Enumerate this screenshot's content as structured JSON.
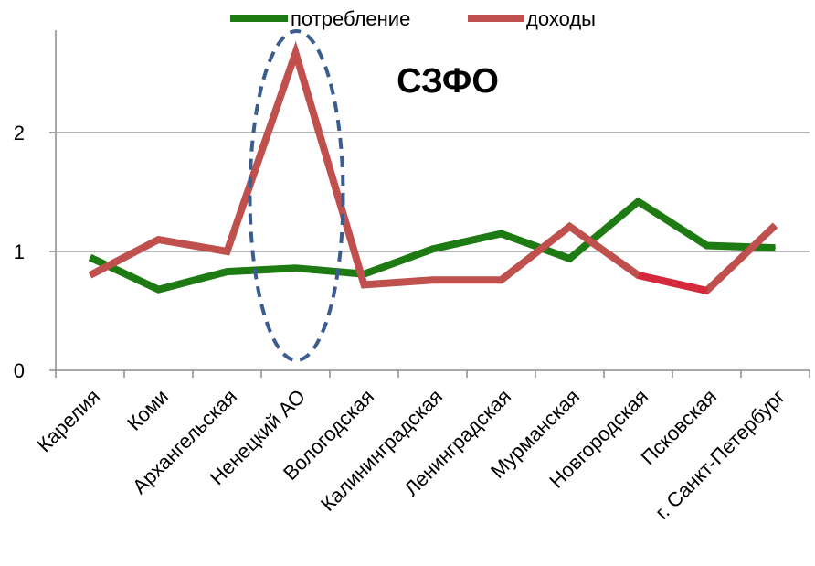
{
  "chart_data": {
    "type": "line",
    "title": "СЗФО",
    "categories": [
      "Карелия",
      "Коми",
      "Архангельская",
      "Ненецкий АО",
      "Вологодская",
      "Калининградская",
      "Ленинградская",
      "Мурманская",
      "Новгородская",
      "Псковская",
      "г. Санкт-Петербург"
    ],
    "series": [
      {
        "name": "потребление",
        "color": "#1e7a12",
        "values": [
          0.95,
          0.68,
          0.83,
          0.86,
          0.81,
          1.02,
          1.15,
          0.94,
          1.42,
          1.05,
          1.03
        ]
      },
      {
        "name": "доходы",
        "color": "#c0504d",
        "values": [
          0.8,
          1.1,
          1.0,
          2.67,
          0.72,
          0.76,
          0.76,
          1.21,
          0.8,
          0.67,
          1.22
        ]
      }
    ],
    "ylim": [
      0,
      3
    ],
    "yticks": [
      "0",
      "1",
      "2"
    ],
    "grid": true,
    "legend": "top",
    "highlight_color": "#3b5c8e",
    "segment_highlight_color": "#d42a3c"
  }
}
